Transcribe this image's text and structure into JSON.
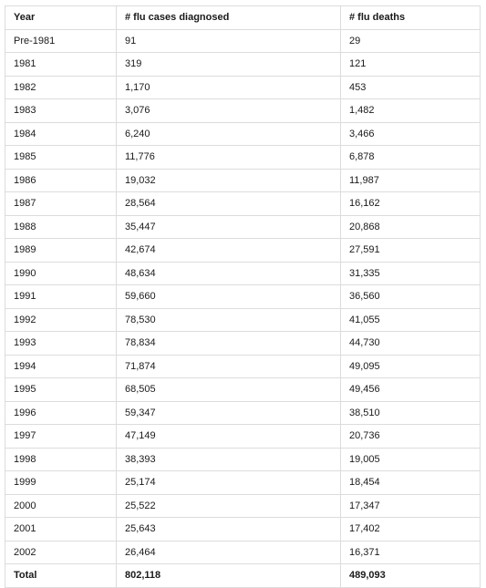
{
  "table": {
    "headers": [
      "Year",
      "# flu cases diagnosed",
      "# flu deaths"
    ],
    "rows": [
      [
        "Pre-1981",
        "91",
        "29"
      ],
      [
        "1981",
        "319",
        "121"
      ],
      [
        "1982",
        "1,170",
        "453"
      ],
      [
        "1983",
        "3,076",
        "1,482"
      ],
      [
        "1984",
        "6,240",
        "3,466"
      ],
      [
        "1985",
        "11,776",
        "6,878"
      ],
      [
        "1986",
        "19,032",
        "11,987"
      ],
      [
        "1987",
        "28,564",
        "16,162"
      ],
      [
        "1988",
        "35,447",
        "20,868"
      ],
      [
        "1989",
        "42,674",
        "27,591"
      ],
      [
        "1990",
        "48,634",
        "31,335"
      ],
      [
        "1991",
        "59,660",
        "36,560"
      ],
      [
        "1992",
        "78,530",
        "41,055"
      ],
      [
        "1993",
        "78,834",
        "44,730"
      ],
      [
        "1994",
        "71,874",
        "49,095"
      ],
      [
        "1995",
        "68,505",
        "49,456"
      ],
      [
        "1996",
        "59,347",
        "38,510"
      ],
      [
        "1997",
        "47,149",
        "20,736"
      ],
      [
        "1998",
        "38,393",
        "19,005"
      ],
      [
        "1999",
        "25,174",
        "18,454"
      ],
      [
        "2000",
        "25,522",
        "17,347"
      ],
      [
        "2001",
        "25,643",
        "17,402"
      ],
      [
        "2002",
        "26,464",
        "16,371"
      ]
    ],
    "total": [
      "Total",
      "802,118",
      "489,093"
    ]
  }
}
